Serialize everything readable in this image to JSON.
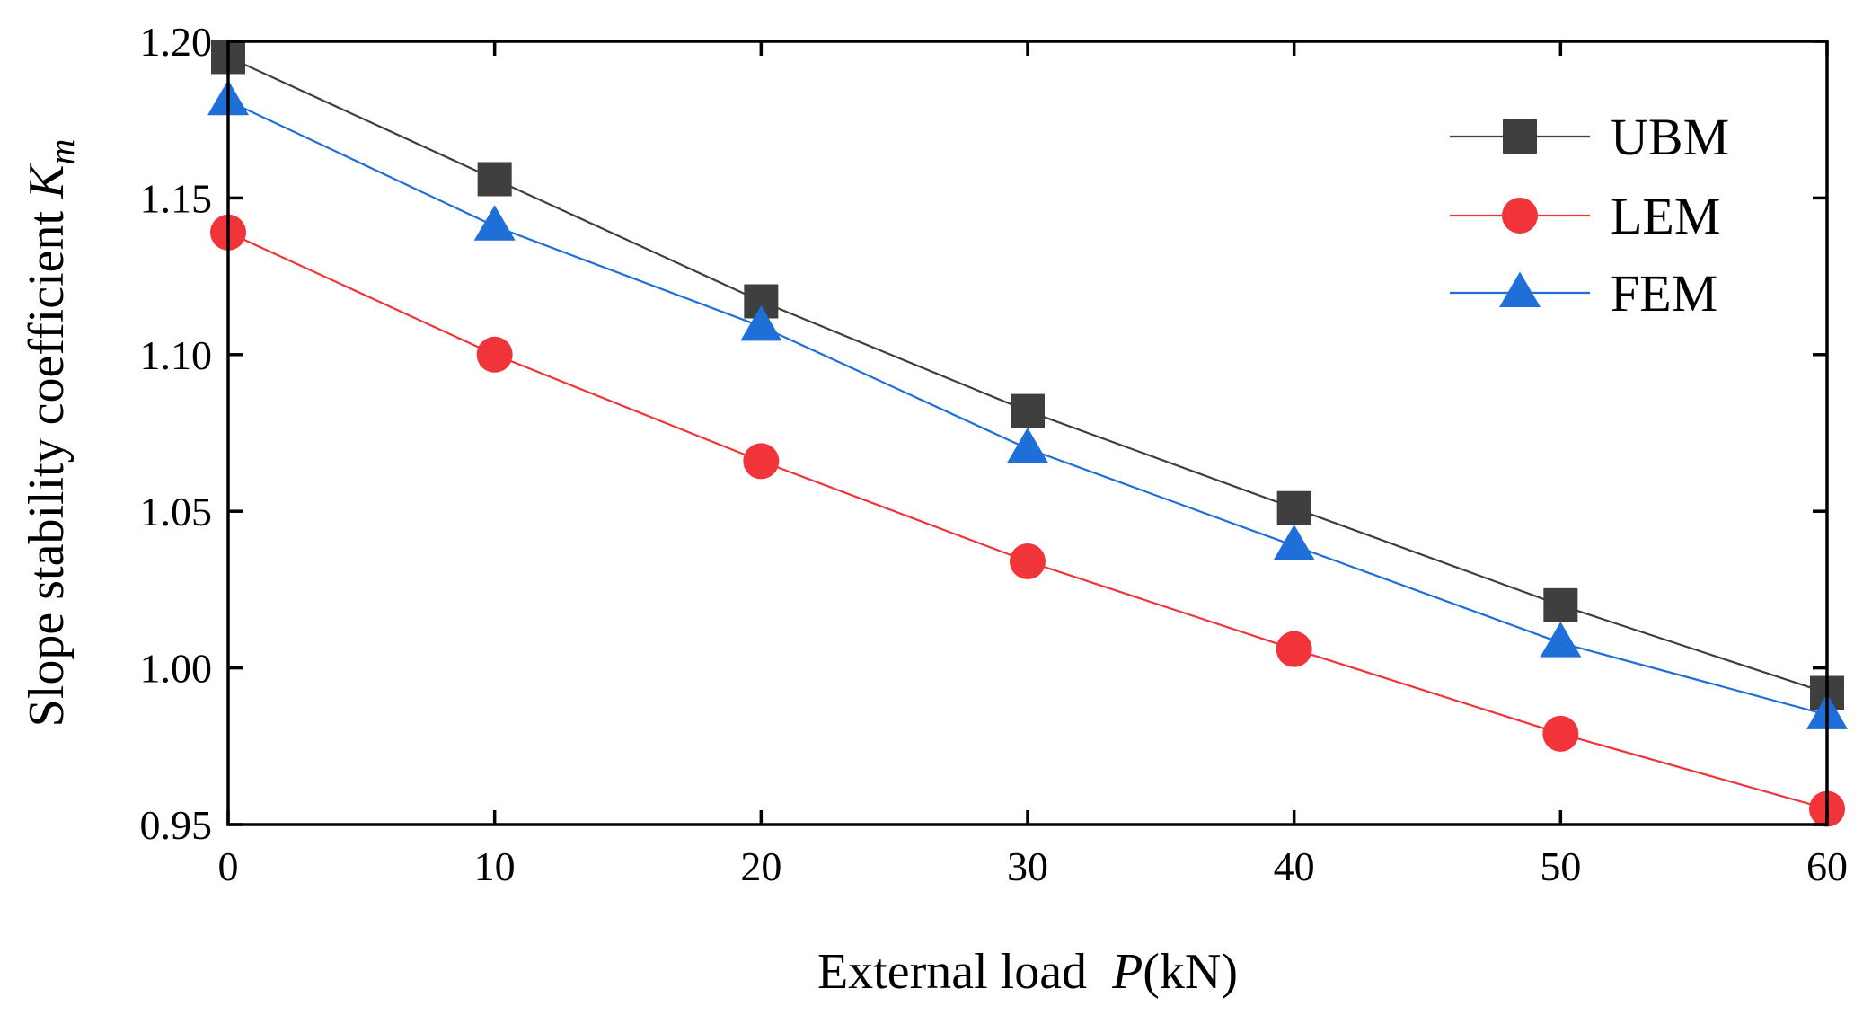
{
  "chart_data": {
    "type": "line",
    "title": "",
    "xlabel": {
      "prefix": "External load  ",
      "italic": "P",
      "suffix": "(kN)"
    },
    "ylabel": {
      "prefix": "Slope stability coefficient ",
      "italic": "K",
      "subscript": "m"
    },
    "xlim": [
      0,
      60
    ],
    "ylim": [
      0.95,
      1.2
    ],
    "xticks": [
      0,
      10,
      20,
      30,
      40,
      50,
      60
    ],
    "xtick_labels": [
      "0",
      "10",
      "20",
      "30",
      "40",
      "50",
      "60"
    ],
    "yticks": [
      0.95,
      1.0,
      1.05,
      1.1,
      1.15,
      1.2
    ],
    "ytick_labels": [
      "0.95",
      "1.00",
      "1.05",
      "1.10",
      "1.15",
      "1.20"
    ],
    "x": [
      0,
      10,
      20,
      30,
      40,
      50,
      60
    ],
    "grid": false,
    "legend_position": "top-right",
    "series": [
      {
        "name": "UBM",
        "marker": "square",
        "color": "#3f3f3f",
        "line_color": "#3f3f3f",
        "values": [
          1.195,
          1.156,
          1.117,
          1.082,
          1.051,
          1.02,
          0.992
        ]
      },
      {
        "name": "LEM",
        "marker": "circle",
        "color": "#f0343a",
        "line_color": "#f0343a",
        "values": [
          1.139,
          1.1,
          1.066,
          1.034,
          1.006,
          0.979,
          0.955
        ]
      },
      {
        "name": "FEM",
        "marker": "triangle",
        "color": "#1f6fd9",
        "line_color": "#1f6fd9",
        "values": [
          1.181,
          1.141,
          1.109,
          1.07,
          1.039,
          1.008,
          0.985
        ]
      }
    ]
  }
}
